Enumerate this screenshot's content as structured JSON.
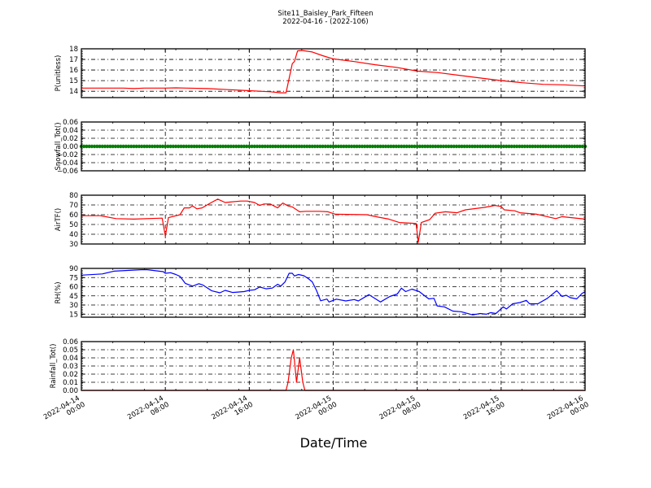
{
  "title_lines": [
    "Site11_Baisley_Park_Fifteen",
    "2022-04-16 - (2022-106)"
  ],
  "chart_data": {
    "type": "line",
    "xlabel": "Date/Time",
    "x_units": "hours since 2022-04-14 00:00",
    "xlim": [
      0,
      48
    ],
    "x_major_ticks": [
      0,
      8,
      16,
      24,
      32,
      40,
      48
    ],
    "x_tick_labels": [
      [
        "2022-04-14",
        "00:00"
      ],
      [
        "2022-04-14",
        "08:00"
      ],
      [
        "2022-04-14",
        "16:00"
      ],
      [
        "2022-04-15",
        "00:00"
      ],
      [
        "2022-04-15",
        "08:00"
      ],
      [
        "2022-04-15",
        "16:00"
      ],
      [
        "2022-04-16",
        "00:00"
      ]
    ],
    "grid": true,
    "panels": [
      {
        "ylabel": "P(unitless)",
        "ylim": [
          13.4,
          18
        ],
        "yticks": [
          14,
          15,
          16,
          17,
          18
        ],
        "ytick_labels": [
          "14",
          "15",
          "16",
          "17",
          "18"
        ],
        "color": "#ff0000",
        "style": "line",
        "points": [
          [
            0,
            14.3
          ],
          [
            4,
            14.3
          ],
          [
            5,
            14.25
          ],
          [
            6,
            14.3
          ],
          [
            8,
            14.3
          ],
          [
            9,
            14.32
          ],
          [
            10,
            14.3
          ],
          [
            12,
            14.25
          ],
          [
            14,
            14.15
          ],
          [
            16,
            14.05
          ],
          [
            18,
            13.95
          ],
          [
            19,
            13.85
          ],
          [
            19.5,
            13.85
          ],
          [
            20.1,
            16.6
          ],
          [
            20.3,
            16.8
          ],
          [
            20.6,
            17.8
          ],
          [
            21,
            17.85
          ],
          [
            22,
            17.7
          ],
          [
            23,
            17.35
          ],
          [
            24,
            17.05
          ],
          [
            26,
            16.8
          ],
          [
            28,
            16.5
          ],
          [
            30,
            16.25
          ],
          [
            32,
            15.9
          ],
          [
            34,
            15.75
          ],
          [
            36,
            15.5
          ],
          [
            38,
            15.25
          ],
          [
            40,
            15.0
          ],
          [
            42,
            14.8
          ],
          [
            44,
            14.65
          ],
          [
            46,
            14.6
          ],
          [
            48,
            14.5
          ]
        ]
      },
      {
        "ylabel": "Snowfall_Tot()",
        "ylim": [
          -0.06,
          0.06
        ],
        "yticks": [
          -0.06,
          -0.04,
          -0.02,
          0,
          0.02,
          0.04,
          0.06
        ],
        "ytick_labels": [
          "−0.06",
          "−0.04",
          "−0.02",
          "0.00",
          "0.02",
          "0.04",
          "0.06"
        ],
        "color": "#008000",
        "style": "markers",
        "constant_value": 0,
        "x_step_hours": 0.25
      },
      {
        "ylabel": "AirTF()",
        "ylim": [
          30,
          80
        ],
        "yticks": [
          30,
          40,
          50,
          60,
          70,
          80
        ],
        "ytick_labels": [
          "30",
          "40",
          "50",
          "60",
          "70",
          "80"
        ],
        "color": "#ff0000",
        "style": "line",
        "points": [
          [
            0,
            59
          ],
          [
            1.8,
            59
          ],
          [
            3.3,
            56
          ],
          [
            5,
            55.5
          ],
          [
            7.7,
            56.5
          ],
          [
            8,
            38
          ],
          [
            8.3,
            57
          ],
          [
            9.4,
            60
          ],
          [
            9.8,
            67
          ],
          [
            10.3,
            67
          ],
          [
            10.6,
            69
          ],
          [
            11,
            66
          ],
          [
            11.5,
            67
          ],
          [
            12.3,
            72
          ],
          [
            13,
            76
          ],
          [
            13.7,
            72.5
          ],
          [
            14.2,
            73
          ],
          [
            15.2,
            74
          ],
          [
            15.8,
            74
          ],
          [
            16.5,
            72.5
          ],
          [
            17,
            69.5
          ],
          [
            17.4,
            71
          ],
          [
            18,
            71
          ],
          [
            18.7,
            67
          ],
          [
            19.2,
            72
          ],
          [
            19.7,
            69
          ],
          [
            20.1,
            68
          ],
          [
            20.8,
            63
          ],
          [
            21.4,
            63.5
          ],
          [
            22.7,
            63.5
          ],
          [
            23.5,
            63
          ],
          [
            24.2,
            60.5
          ],
          [
            27.2,
            60
          ],
          [
            28.3,
            57.5
          ],
          [
            29.3,
            55.5
          ],
          [
            30.3,
            52
          ],
          [
            31.9,
            51
          ],
          [
            32.1,
            31.5
          ],
          [
            32.4,
            52
          ],
          [
            33.2,
            55
          ],
          [
            33.7,
            61.5
          ],
          [
            34.7,
            63
          ],
          [
            35.8,
            62
          ],
          [
            36.6,
            65
          ],
          [
            38.4,
            67.5
          ],
          [
            39.4,
            69.5
          ],
          [
            40,
            68.5
          ],
          [
            40.3,
            65
          ],
          [
            41.3,
            64
          ],
          [
            41.8,
            62
          ],
          [
            43.4,
            60.5
          ],
          [
            45.2,
            56
          ],
          [
            45.8,
            58
          ],
          [
            46.7,
            57
          ],
          [
            48,
            55.5
          ]
        ]
      },
      {
        "ylabel": "RH(%)",
        "ylim": [
          10,
          90
        ],
        "yticks": [
          15,
          30,
          45,
          60,
          75,
          90
        ],
        "ytick_labels": [
          "15",
          "30",
          "45",
          "60",
          "75",
          "90"
        ],
        "color": "#0000ff",
        "style": "line",
        "points": [
          [
            0,
            79
          ],
          [
            2,
            81
          ],
          [
            3.1,
            85.5
          ],
          [
            5.7,
            87.8
          ],
          [
            6.2,
            88
          ],
          [
            7.8,
            84.7
          ],
          [
            8,
            82
          ],
          [
            8.5,
            83
          ],
          [
            9,
            80
          ],
          [
            9.4,
            77
          ],
          [
            9.9,
            65.5
          ],
          [
            10.6,
            61
          ],
          [
            11.2,
            65
          ],
          [
            11.6,
            62.5
          ],
          [
            12.4,
            53.5
          ],
          [
            13.2,
            50
          ],
          [
            13.7,
            54
          ],
          [
            14.4,
            50.5
          ],
          [
            15.5,
            52
          ],
          [
            16,
            54
          ],
          [
            16.5,
            55
          ],
          [
            17,
            59.5
          ],
          [
            17.6,
            56.5
          ],
          [
            18.2,
            57.7
          ],
          [
            18.7,
            64
          ],
          [
            19,
            61
          ],
          [
            19.4,
            67.7
          ],
          [
            19.8,
            82
          ],
          [
            20.1,
            82
          ],
          [
            20.3,
            77.6
          ],
          [
            20.7,
            80
          ],
          [
            21.2,
            78
          ],
          [
            21.6,
            73.4
          ],
          [
            22,
            68
          ],
          [
            22.4,
            54
          ],
          [
            22.8,
            37
          ],
          [
            23.4,
            39.7
          ],
          [
            23.6,
            35
          ],
          [
            24.3,
            39.6
          ],
          [
            25.2,
            36.7
          ],
          [
            26,
            39
          ],
          [
            26.4,
            36.7
          ],
          [
            27.4,
            47
          ],
          [
            28.5,
            35
          ],
          [
            29.4,
            44
          ],
          [
            30.1,
            48
          ],
          [
            30.5,
            57.6
          ],
          [
            30.9,
            52
          ],
          [
            31.5,
            56
          ],
          [
            32.2,
            52
          ],
          [
            33.1,
            40
          ],
          [
            33.6,
            41
          ],
          [
            33.9,
            28.5
          ],
          [
            34.6,
            27
          ],
          [
            35.4,
            20
          ],
          [
            36.2,
            19
          ],
          [
            37.3,
            13.7
          ],
          [
            38,
            16
          ],
          [
            38.6,
            15
          ],
          [
            39,
            17.5
          ],
          [
            39.5,
            16
          ],
          [
            40.2,
            27
          ],
          [
            40.5,
            23.5
          ],
          [
            41.1,
            32
          ],
          [
            41.8,
            34
          ],
          [
            42.4,
            37.6
          ],
          [
            42.7,
            32
          ],
          [
            43.5,
            32
          ],
          [
            44.4,
            41
          ],
          [
            45.3,
            53.5
          ],
          [
            45.8,
            44
          ],
          [
            46.2,
            46
          ],
          [
            46.6,
            42
          ],
          [
            47.2,
            40
          ],
          [
            47.7,
            48.8
          ],
          [
            48,
            52
          ]
        ]
      },
      {
        "ylabel": "Rainfall_Tot()",
        "ylim": [
          0,
          0.06
        ],
        "yticks": [
          0,
          0.01,
          0.02,
          0.03,
          0.04,
          0.05,
          0.06
        ],
        "ytick_labels": [
          "0.00",
          "0.01",
          "0.02",
          "0.03",
          "0.04",
          "0.05",
          "0.06"
        ],
        "color": "#ff0000",
        "style": "line",
        "points": [
          [
            0,
            0
          ],
          [
            19.5,
            0
          ],
          [
            19.7,
            0.01
          ],
          [
            20,
            0.04
          ],
          [
            20.2,
            0.05
          ],
          [
            20.5,
            0.01
          ],
          [
            20.8,
            0.04
          ],
          [
            21.1,
            0.01
          ],
          [
            21.3,
            0
          ],
          [
            48,
            0
          ]
        ]
      }
    ]
  }
}
